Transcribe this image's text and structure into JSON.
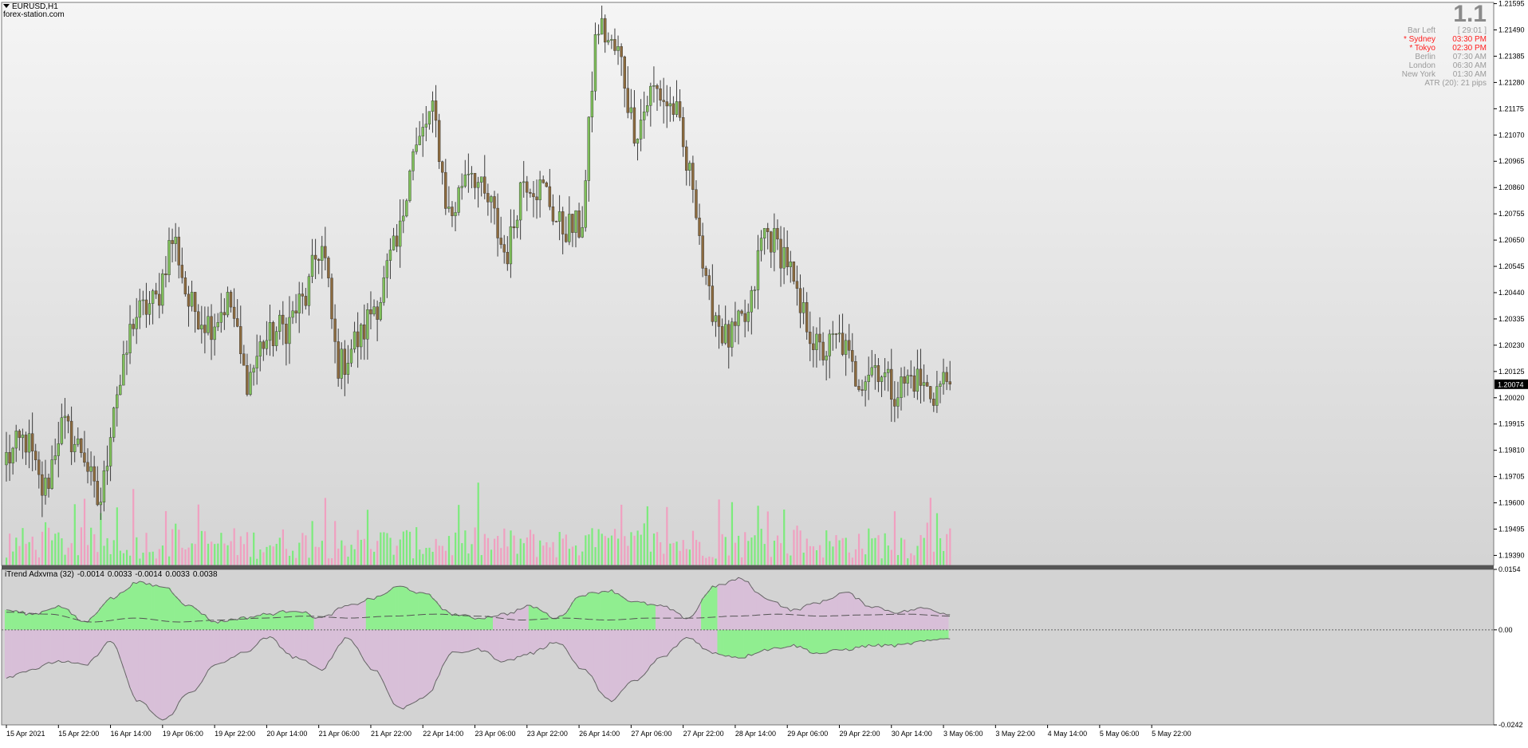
{
  "window": {
    "symbol": "EURUSD,H1",
    "source": "forex-station.com",
    "bar_count_display": "1.1"
  },
  "info_panel": {
    "rows": [
      {
        "label": "Bar Left",
        "value": "[ 29:01 ]",
        "color": "#9a9a9a"
      },
      {
        "label": "* Sydney",
        "value": "03:30 PM",
        "color": "#ff2020"
      },
      {
        "label": "* Tokyo",
        "value": "02:30 PM",
        "color": "#ff2020"
      },
      {
        "label": "Berlin",
        "value": "07:30 AM",
        "color": "#9a9a9a"
      },
      {
        "label": "London",
        "value": "06:30 AM",
        "color": "#9a9a9a"
      },
      {
        "label": "New York",
        "value": "01:30 AM",
        "color": "#9a9a9a"
      }
    ],
    "atr": "ATR (20): 21 pips"
  },
  "indicator": {
    "name": "iTrend Adxvma (32)",
    "values": [
      "-0.0014",
      "0.0033",
      "-0.0014",
      "0.0033",
      "0.0038"
    ]
  },
  "colors": {
    "bull_body": "#7fbf5a",
    "bear_body": "#8b6a3e",
    "wick": "#3c3c3c",
    "volume_up": "#7CEB7C",
    "volume_down": "#F0A0C0",
    "fill_green": "#90EE90",
    "fill_pink": "#D8BFD8",
    "separator": "#555555",
    "current_price_bg": "#000000"
  },
  "chart_data": [
    {
      "type": "candlestick",
      "symbol": "EURUSD",
      "timeframe": "H1",
      "ylim": [
        1.1935,
        1.216
      ],
      "y_ticks": [
        "1.21595",
        "1.21490",
        "1.21385",
        "1.21280",
        "1.21175",
        "1.21070",
        "1.20965",
        "1.20860",
        "1.20755",
        "1.20650",
        "1.20545",
        "1.20440",
        "1.20335",
        "1.20230",
        "1.20125",
        "1.20020",
        "1.19915",
        "1.19810",
        "1.19705",
        "1.19600",
        "1.19495",
        "1.19390"
      ],
      "current_price_label": "1.20074",
      "current_price": 1.20074,
      "x_tick_labels": [
        "15 Apr 2021",
        "15 Apr 22:00",
        "16 Apr 14:00",
        "19 Apr 06:00",
        "19 Apr 22:00",
        "20 Apr 14:00",
        "21 Apr 06:00",
        "21 Apr 22:00",
        "22 Apr 14:00",
        "23 Apr 06:00",
        "23 Apr 22:00",
        "26 Apr 14:00",
        "27 Apr 06:00",
        "27 Apr 22:00",
        "28 Apr 14:00",
        "29 Apr 06:00",
        "29 Apr 22:00",
        "30 Apr 14:00",
        "3 May 06:00",
        "3 May 22:00",
        "4 May 14:00",
        "5 May 06:00",
        "5 May 22:00"
      ],
      "bars_per_label": 16,
      "anchor_closes": [
        1.1978,
        1.1985,
        1.1965,
        1.199,
        1.1982,
        1.196,
        1.2005,
        1.2035,
        1.204,
        1.2065,
        1.2038,
        1.2032,
        1.204,
        1.201,
        1.2025,
        1.203,
        1.204,
        1.2062,
        1.2015,
        1.2025,
        1.204,
        1.206,
        1.21,
        1.2115,
        1.2075,
        1.2095,
        1.208,
        1.206,
        1.209,
        1.2085,
        1.207,
        1.207,
        1.215,
        1.214,
        1.211,
        1.2125,
        1.2118,
        1.209,
        1.204,
        1.2025,
        1.2033,
        1.2068,
        1.206,
        1.2035,
        1.202,
        1.2025,
        1.201,
        1.2015,
        1.2005,
        1.201,
        1.2004,
        1.201
      ]
    },
    {
      "type": "bar",
      "name": "Volume",
      "note": "tick-volume histogram in the price panel, colored by bar direction"
    },
    {
      "type": "area",
      "name": "iTrend Adxvma (32)",
      "ylim": [
        -0.0242,
        0.0154
      ],
      "y_ticks": [
        "0.0154",
        "0.00",
        "-0.0242"
      ],
      "upper_anchor": [
        0.005,
        0.004,
        0.006,
        0.002,
        0.008,
        0.012,
        0.011,
        0.006,
        0.002,
        0.003,
        0.004,
        0.005,
        0.003,
        0.006,
        0.008,
        0.011,
        0.009,
        0.004,
        0.003,
        0.004,
        0.006,
        0.003,
        0.009,
        0.01,
        0.007,
        0.006,
        0.003,
        0.011,
        0.013,
        0.008,
        0.005,
        0.007,
        0.0095,
        0.006,
        0.0045,
        0.0055,
        0.004
      ],
      "lower_anchor": [
        -0.012,
        -0.01,
        -0.008,
        -0.009,
        -0.003,
        -0.018,
        -0.023,
        -0.016,
        -0.009,
        -0.006,
        -0.002,
        -0.007,
        -0.01,
        -0.002,
        -0.01,
        -0.02,
        -0.017,
        -0.006,
        -0.005,
        -0.008,
        -0.006,
        -0.003,
        -0.01,
        -0.018,
        -0.013,
        -0.007,
        -0.002,
        -0.006,
        -0.007,
        -0.005,
        -0.004,
        -0.006,
        -0.005,
        -0.004,
        -0.004,
        -0.003,
        -0.002
      ],
      "signal_anchor": [
        0.0045,
        0.004,
        0.002,
        0.003,
        0.002,
        0.0025,
        0.003,
        0.0035,
        0.003,
        0.0035,
        0.004,
        0.0035,
        0.0025,
        0.003,
        0.0025,
        0.003,
        0.003,
        0.0035,
        0.004,
        0.0035,
        0.0038,
        0.004,
        0.0035
      ]
    }
  ]
}
